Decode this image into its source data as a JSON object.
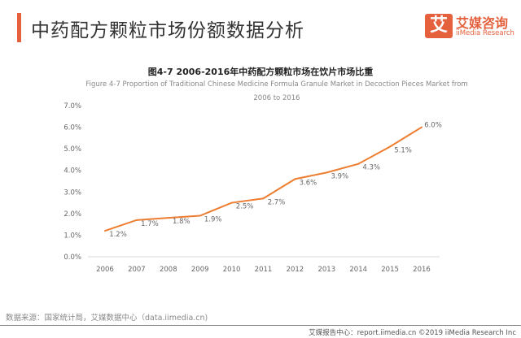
{
  "header": {
    "title": "中药配方颗粒市场份额数据分析"
  },
  "logo": {
    "mark": "艾",
    "cn": "艾媒咨询",
    "en": "iiMedia Research"
  },
  "colors": {
    "accent": "#e5603d",
    "line": "#ed7d31"
  },
  "chart_data": {
    "type": "line",
    "title": "图4-7 2006-2016年中药配方颗粒市场在饮片市场比重",
    "subtitle": "Figure 4-7 Proportion of Traditional Chinese Medicine Formula Granule Market in Decoction Pieces Market from 2006 to 2016",
    "categories": [
      "2006",
      "2007",
      "2008",
      "2009",
      "2010",
      "2011",
      "2012",
      "2013",
      "2014",
      "2015",
      "2016"
    ],
    "values": [
      1.2,
      1.7,
      1.8,
      1.9,
      2.5,
      2.7,
      3.6,
      3.9,
      4.3,
      5.1,
      6.0
    ],
    "data_labels": [
      "1.2%",
      "1.7%",
      "1.8%",
      "1.9%",
      "2.5%",
      "2.7%",
      "3.6%",
      "3.9%",
      "4.3%",
      "5.1%",
      "6.0%"
    ],
    "yticks": [
      "0.0%",
      "1.0%",
      "2.0%",
      "3.0%",
      "4.0%",
      "5.0%",
      "6.0%",
      "7.0%"
    ],
    "ylim": [
      0,
      7
    ],
    "grid": false
  },
  "source": "数据来源：国家统计局，艾媒数据中心（data.iimedia.cn)",
  "footer": "艾媒报告中心：report.iimedia.cn  ©2019  iiMedia Research Inc"
}
